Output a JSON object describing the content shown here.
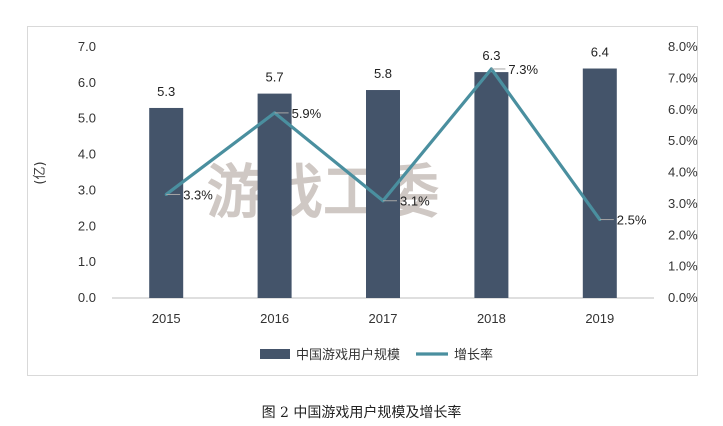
{
  "caption": "图 2  中国游戏用户规模及增长率",
  "watermark": "游戏工委",
  "chart_data": {
    "type": "bar",
    "categories": [
      "2015",
      "2016",
      "2017",
      "2018",
      "2019"
    ],
    "series": [
      {
        "name": "中国游戏用户规模",
        "type": "bar",
        "axis": "left",
        "values": [
          5.3,
          5.7,
          5.8,
          6.3,
          6.4
        ],
        "labels": [
          "5.3",
          "5.7",
          "5.8",
          "6.3",
          "6.4"
        ]
      },
      {
        "name": "增长率",
        "type": "line",
        "axis": "right",
        "values": [
          3.3,
          5.9,
          3.1,
          7.3,
          2.5
        ],
        "labels": [
          "3.3%",
          "5.9%",
          "3.1%",
          "7.3%",
          "2.5%"
        ]
      }
    ],
    "ylabel": "(亿)",
    "ylim": [
      0,
      7
    ],
    "y_ticks": [
      "0.0",
      "1.0",
      "2.0",
      "3.0",
      "4.0",
      "5.0",
      "6.0",
      "7.0"
    ],
    "y2lim": [
      0,
      8
    ],
    "y2_ticks": [
      "0.0%",
      "1.0%",
      "2.0%",
      "3.0%",
      "4.0%",
      "5.0%",
      "6.0%",
      "7.0%",
      "8.0%"
    ],
    "legend_position": "bottom",
    "grid": false,
    "colors": {
      "bar": "#44546a",
      "line": "#4a8f9f"
    }
  }
}
